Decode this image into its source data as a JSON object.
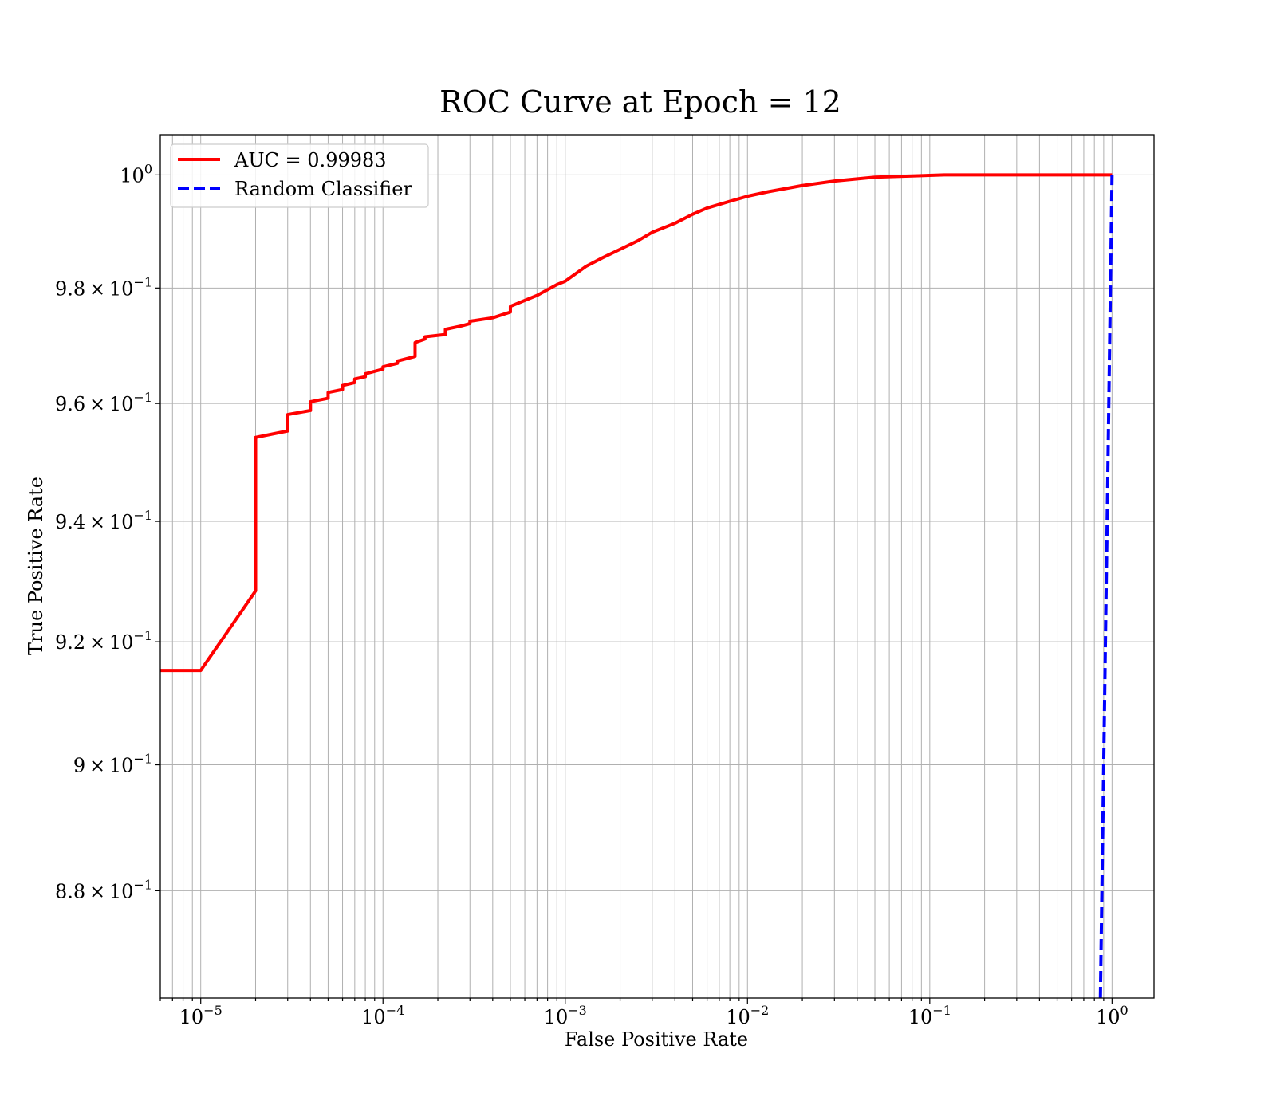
{
  "chart_data": {
    "type": "line",
    "title": "ROC Curve at Epoch = 12",
    "xlabel": "False Positive Rate",
    "ylabel": "True Positive Rate",
    "xscale": "log",
    "yscale": "log",
    "xlim": [
      6e-06,
      1.7
    ],
    "ylim": [
      0.8633,
      1.0072
    ],
    "grid": "both (major and minor)",
    "legend_position": "upper-left",
    "x_ticks": [
      {
        "value": 1e-05,
        "base": "10",
        "exp": "−5"
      },
      {
        "value": 0.0001,
        "base": "10",
        "exp": "−4"
      },
      {
        "value": 0.001,
        "base": "10",
        "exp": "−3"
      },
      {
        "value": 0.01,
        "base": "10",
        "exp": "−2"
      },
      {
        "value": 0.1,
        "base": "10",
        "exp": "−1"
      },
      {
        "value": 1,
        "base": "10",
        "exp": "0"
      }
    ],
    "y_ticks": [
      {
        "value": 0.88,
        "mant": "8.8 × 10",
        "exp": "−1"
      },
      {
        "value": 0.9,
        "mant": "9 × 10",
        "exp": "−1"
      },
      {
        "value": 0.92,
        "mant": "9.2 × 10",
        "exp": "−1"
      },
      {
        "value": 0.94,
        "mant": "9.4 × 10",
        "exp": "−1"
      },
      {
        "value": 0.96,
        "mant": "9.6 × 10",
        "exp": "−1"
      },
      {
        "value": 0.98,
        "mant": "9.8 × 10",
        "exp": "−1"
      },
      {
        "value": 1.0,
        "mant": "10",
        "exp": "0"
      }
    ],
    "series": [
      {
        "name": "AUC = 0.99983",
        "color": "#ff0000",
        "style": "solid",
        "x": [
          6e-06,
          1e-05,
          2e-05,
          2e-05,
          3e-05,
          3e-05,
          4e-05,
          4e-05,
          5e-05,
          5e-05,
          6e-05,
          6e-05,
          7e-05,
          7e-05,
          8e-05,
          8e-05,
          0.0001,
          0.0001,
          0.00012,
          0.00012,
          0.00015,
          0.00015,
          0.00017,
          0.00017,
          0.00022,
          0.00022,
          0.00027,
          0.0003,
          0.0003,
          0.0004,
          0.0005,
          0.0005,
          0.0007,
          0.0009,
          0.001,
          0.0013,
          0.0016,
          0.002,
          0.0025,
          0.003,
          0.004,
          0.005,
          0.006,
          0.008,
          0.01,
          0.013,
          0.02,
          0.03,
          0.05,
          0.08,
          0.12,
          0.2,
          0.4,
          0.7,
          1.0
        ],
        "y": [
          0.9153,
          0.9153,
          0.9284,
          0.9542,
          0.9553,
          0.9581,
          0.9588,
          0.9603,
          0.9609,
          0.9619,
          0.9624,
          0.9631,
          0.9636,
          0.9642,
          0.9646,
          0.9651,
          0.9659,
          0.9663,
          0.9669,
          0.9673,
          0.9681,
          0.9705,
          0.9711,
          0.9715,
          0.9719,
          0.9728,
          0.9734,
          0.9738,
          0.9742,
          0.9748,
          0.9758,
          0.9768,
          0.9787,
          0.9806,
          0.9812,
          0.9838,
          0.9853,
          0.9868,
          0.9883,
          0.9898,
          0.9914,
          0.993,
          0.9941,
          0.9953,
          0.9962,
          0.997,
          0.9981,
          0.9989,
          0.9996,
          0.9998,
          1.0,
          1.0,
          1.0,
          1.0,
          1.0
        ]
      },
      {
        "name": "Random Classifier",
        "color": "#0000ff",
        "style": "dashed",
        "x": [
          0.8633,
          0.88,
          0.9,
          0.92,
          0.94,
          0.96,
          0.98,
          1.0
        ],
        "y": [
          0.8633,
          0.88,
          0.9,
          0.92,
          0.94,
          0.96,
          0.98,
          1.0
        ]
      }
    ]
  }
}
